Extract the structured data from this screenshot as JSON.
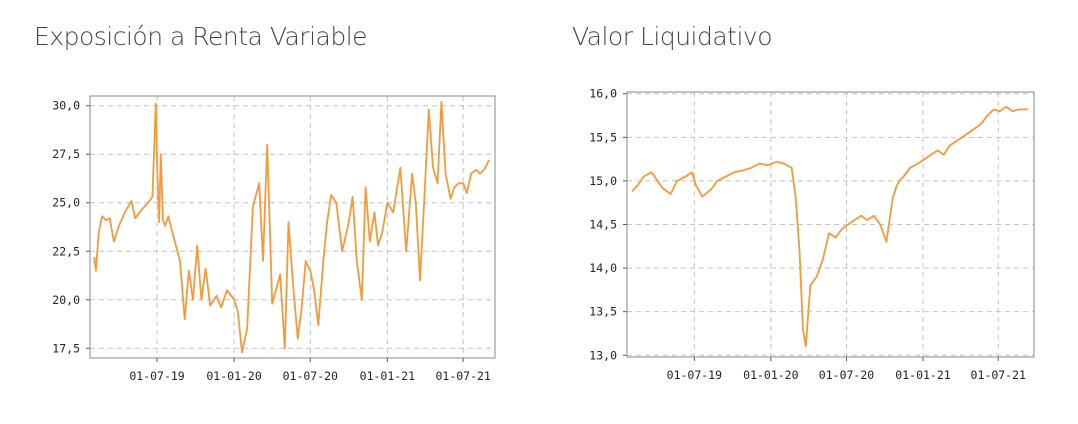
{
  "chart_data": [
    {
      "type": "line",
      "title": "Exposición a Renta Variable",
      "xlabel": "",
      "ylabel": "",
      "ylim": [
        17.0,
        30.5
      ],
      "yticks": [
        "30,0",
        "27,5",
        "25,0",
        "22,5",
        "20,0",
        "17,5"
      ],
      "ytick_values": [
        30.0,
        27.5,
        25.0,
        22.5,
        20.0,
        17.5
      ],
      "xlim": [
        "2019-01-22",
        "2021-09-15"
      ],
      "xticks": [
        "01-07-19",
        "01-01-20",
        "01-07-20",
        "01-01-21",
        "01-07-21"
      ],
      "xtick_dates": [
        "2019-07-01",
        "2020-01-01",
        "2020-07-01",
        "2021-01-01",
        "2021-07-01"
      ],
      "grid": true,
      "color": "#f7993a",
      "series": [
        {
          "x": [
            "2019-02-01",
            "2019-02-05",
            "2019-02-12",
            "2019-02-20",
            "2019-03-01",
            "2019-03-10",
            "2019-03-20",
            "2019-04-01",
            "2019-04-15",
            "2019-05-01",
            "2019-05-10",
            "2019-05-20",
            "2019-06-01",
            "2019-06-10",
            "2019-06-20",
            "2019-06-28",
            "2019-07-02",
            "2019-07-06",
            "2019-07-10",
            "2019-07-15",
            "2019-07-20",
            "2019-07-28",
            "2019-08-10",
            "2019-08-25",
            "2019-09-05",
            "2019-09-15",
            "2019-09-25",
            "2019-10-05",
            "2019-10-15",
            "2019-10-25",
            "2019-11-05",
            "2019-11-20",
            "2019-12-01",
            "2019-12-15",
            "2020-01-01",
            "2020-01-10",
            "2020-01-20",
            "2020-02-01",
            "2020-02-15",
            "2020-03-01",
            "2020-03-10",
            "2020-03-20",
            "2020-04-01",
            "2020-04-10",
            "2020-04-20",
            "2020-05-01",
            "2020-05-10",
            "2020-05-20",
            "2020-06-01",
            "2020-06-10",
            "2020-06-20",
            "2020-07-01",
            "2020-07-10",
            "2020-07-20",
            "2020-08-01",
            "2020-08-10",
            "2020-08-20",
            "2020-09-01",
            "2020-09-15",
            "2020-10-01",
            "2020-10-10",
            "2020-10-20",
            "2020-11-01",
            "2020-11-10",
            "2020-11-20",
            "2020-12-01",
            "2020-12-10",
            "2020-12-20",
            "2021-01-01",
            "2021-01-15",
            "2021-02-01",
            "2021-02-15",
            "2021-03-01",
            "2021-03-10",
            "2021-03-20",
            "2021-04-01",
            "2021-04-10",
            "2021-04-20",
            "2021-05-01",
            "2021-05-10",
            "2021-05-20",
            "2021-06-01",
            "2021-06-10",
            "2021-06-20",
            "2021-07-01",
            "2021-07-10",
            "2021-07-20",
            "2021-08-01",
            "2021-08-10",
            "2021-08-20",
            "2021-09-01"
          ],
          "y": [
            22.2,
            21.5,
            23.5,
            24.3,
            24.1,
            24.2,
            23.0,
            23.8,
            24.5,
            25.1,
            24.2,
            24.5,
            24.8,
            25.0,
            25.3,
            30.1,
            26.5,
            24.0,
            27.5,
            24.1,
            23.8,
            24.3,
            23.2,
            22.0,
            19.0,
            21.5,
            20.0,
            22.8,
            20.0,
            21.6,
            19.7,
            20.2,
            19.6,
            20.5,
            20.0,
            19.4,
            17.3,
            18.5,
            24.8,
            26.0,
            22.0,
            28.0,
            19.8,
            20.5,
            21.3,
            17.5,
            24.0,
            21.0,
            18.0,
            19.5,
            22.0,
            21.5,
            20.5,
            18.7,
            22.0,
            24.0,
            25.4,
            25.0,
            22.5,
            24.0,
            25.3,
            22.0,
            20.0,
            25.8,
            23.0,
            24.5,
            22.8,
            23.5,
            25.0,
            24.5,
            26.8,
            22.5,
            26.5,
            25.0,
            21.0,
            26.0,
            29.8,
            26.8,
            26.0,
            30.2,
            26.5,
            25.2,
            25.8,
            26.0,
            26.0,
            25.5,
            26.5,
            26.7,
            26.5,
            26.7,
            27.2
          ]
        }
      ]
    },
    {
      "type": "line",
      "title": "Valor Liquidativo",
      "xlabel": "",
      "ylabel": "",
      "ylim": [
        12.98,
        16.02
      ],
      "yticks": [
        "16,0",
        "15,5",
        "15,0",
        "14,5",
        "14,0",
        "13,5",
        "13,0"
      ],
      "ytick_values": [
        16.0,
        15.5,
        15.0,
        14.5,
        14.0,
        13.5,
        13.0
      ],
      "xlim": [
        "2019-01-20",
        "2021-09-25"
      ],
      "xticks": [
        "01-07-19",
        "01-01-20",
        "01-07-20",
        "01-01-21",
        "01-07-21"
      ],
      "xtick_dates": [
        "2019-07-01",
        "2020-01-01",
        "2020-07-01",
        "2021-01-01",
        "2021-07-01"
      ],
      "grid": true,
      "color": "#f7993a",
      "series": [
        {
          "x": [
            "2019-02-01",
            "2019-02-15",
            "2019-03-01",
            "2019-03-20",
            "2019-04-15",
            "2019-05-05",
            "2019-05-20",
            "2019-06-10",
            "2019-06-25",
            "2019-07-05",
            "2019-07-20",
            "2019-08-10",
            "2019-08-25",
            "2019-09-15",
            "2019-10-05",
            "2019-10-25",
            "2019-11-15",
            "2019-12-05",
            "2019-12-25",
            "2020-01-15",
            "2020-02-01",
            "2020-02-20",
            "2020-03-01",
            "2020-03-10",
            "2020-03-18",
            "2020-03-25",
            "2020-04-05",
            "2020-04-20",
            "2020-05-05",
            "2020-05-20",
            "2020-06-05",
            "2020-06-20",
            "2020-07-05",
            "2020-07-20",
            "2020-08-05",
            "2020-08-20",
            "2020-09-05",
            "2020-09-20",
            "2020-10-05",
            "2020-10-20",
            "2020-10-30",
            "2020-11-05",
            "2020-11-15",
            "2020-12-01",
            "2020-12-20",
            "2021-01-05",
            "2021-01-20",
            "2021-02-05",
            "2021-02-20",
            "2021-03-05",
            "2021-03-20",
            "2021-04-05",
            "2021-04-20",
            "2021-05-05",
            "2021-05-20",
            "2021-06-05",
            "2021-06-20",
            "2021-07-05",
            "2021-07-20",
            "2021-08-05",
            "2021-08-20",
            "2021-09-10"
          ],
          "y": [
            14.88,
            14.95,
            15.05,
            15.1,
            14.92,
            14.85,
            15.0,
            15.05,
            15.1,
            14.95,
            14.82,
            14.9,
            15.0,
            15.05,
            15.1,
            15.12,
            15.15,
            15.2,
            15.18,
            15.22,
            15.2,
            15.15,
            14.8,
            14.2,
            13.3,
            13.1,
            13.8,
            13.9,
            14.1,
            14.4,
            14.35,
            14.45,
            14.5,
            14.55,
            14.6,
            14.55,
            14.6,
            14.5,
            14.3,
            14.8,
            14.95,
            15.0,
            15.05,
            15.15,
            15.2,
            15.25,
            15.3,
            15.35,
            15.3,
            15.4,
            15.45,
            15.5,
            15.55,
            15.6,
            15.65,
            15.75,
            15.82,
            15.8,
            15.85,
            15.8,
            15.82,
            15.82
          ]
        }
      ]
    }
  ]
}
